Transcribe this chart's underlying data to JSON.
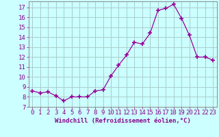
{
  "x": [
    0,
    1,
    2,
    3,
    4,
    5,
    6,
    7,
    8,
    9,
    10,
    11,
    12,
    13,
    14,
    15,
    16,
    17,
    18,
    19,
    20,
    21,
    22,
    23
  ],
  "y": [
    8.6,
    8.4,
    8.5,
    8.1,
    7.6,
    8.0,
    8.0,
    8.0,
    8.6,
    8.7,
    10.1,
    11.2,
    12.2,
    13.5,
    13.3,
    14.4,
    16.7,
    16.9,
    17.3,
    15.9,
    14.2,
    12.0,
    12.0,
    11.7
  ],
  "line_color": "#990099",
  "marker": "+",
  "marker_size": 4,
  "marker_lw": 1.2,
  "bg_color": "#ccffff",
  "grid_color": "#aacccc",
  "xlabel": "Windchill (Refroidissement éolien,°C)",
  "ylabel_ticks": [
    7,
    8,
    9,
    10,
    11,
    12,
    13,
    14,
    15,
    16,
    17
  ],
  "ylim": [
    7.0,
    17.6
  ],
  "xlim": [
    -0.5,
    23.5
  ],
  "label_color": "#880088",
  "tick_color": "#880088",
  "label_fontsize": 6.5,
  "tick_fontsize": 6.5,
  "spine_color": "#888888"
}
